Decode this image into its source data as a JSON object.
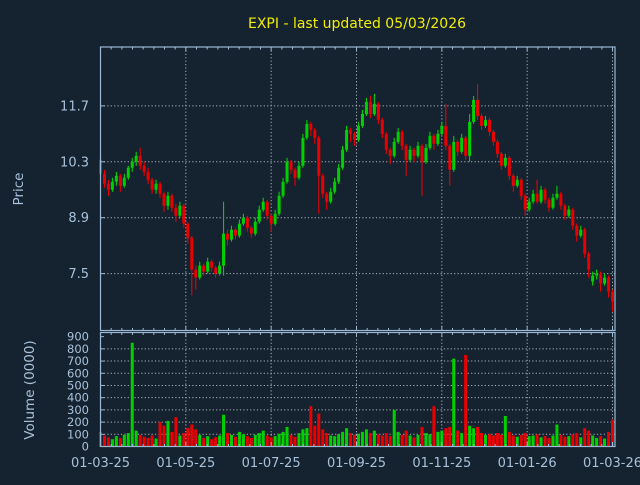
{
  "title": {
    "text": "EXPI - last updated 05/03/2026",
    "color": "#f0f000"
  },
  "colors": {
    "background": "#15222f",
    "spine": "#9cb8d3",
    "tick_label": "#a7c1da",
    "grid": "#c9ced6",
    "up": "#00d000",
    "down": "#ea0000"
  },
  "chart_data": {
    "type": "candlestick",
    "title": "EXPI - last updated 05/03/2026",
    "price": {
      "ylabel": "Price",
      "yticks": [
        11.7,
        10.3,
        8.9,
        7.5
      ],
      "ymin": 6.075,
      "ymax": 13.175,
      "grid": true
    },
    "volume": {
      "ylabel": "Volume (0000)",
      "yticks": [
        900,
        800,
        700,
        600,
        500,
        400,
        300,
        200,
        100,
        0
      ],
      "ymin": 0,
      "ymax": 934,
      "grid": true
    },
    "xticks": {
      "labels": [
        "01-03-25",
        "01-05-25",
        "01-07-25",
        "01-09-25",
        "01-11-25",
        "01-01-26",
        "01-03-26"
      ],
      "positions": [
        0,
        21.5,
        43,
        64.5,
        86,
        107.5,
        129
      ]
    },
    "ohlc": [
      [
        10.35,
        10.5,
        9.9,
        10.0
      ],
      [
        10.0,
        10.1,
        9.65,
        9.75
      ],
      [
        9.75,
        9.85,
        9.45,
        9.6
      ],
      [
        9.6,
        9.9,
        9.55,
        9.8
      ],
      [
        9.8,
        10.05,
        9.7,
        9.95
      ],
      [
        9.95,
        10.0,
        9.55,
        9.7
      ],
      [
        9.7,
        10.0,
        9.65,
        9.9
      ],
      [
        9.9,
        10.2,
        9.85,
        10.15
      ],
      [
        10.15,
        10.4,
        10.05,
        10.3
      ],
      [
        10.3,
        10.55,
        10.2,
        10.45
      ],
      [
        10.45,
        10.65,
        10.1,
        10.2
      ],
      [
        10.2,
        10.3,
        9.95,
        10.05
      ],
      [
        10.05,
        10.15,
        9.75,
        9.85
      ],
      [
        9.85,
        9.9,
        9.5,
        9.6
      ],
      [
        9.6,
        9.85,
        9.5,
        9.75
      ],
      [
        9.75,
        9.8,
        9.4,
        9.5
      ],
      [
        9.5,
        9.55,
        9.05,
        9.2
      ],
      [
        9.2,
        9.55,
        9.1,
        9.45
      ],
      [
        9.45,
        9.5,
        9.05,
        9.15
      ],
      [
        9.15,
        9.25,
        8.8,
        8.95
      ],
      [
        8.95,
        9.3,
        8.9,
        9.2
      ],
      [
        9.2,
        9.25,
        8.65,
        8.75
      ],
      [
        8.75,
        8.8,
        8.25,
        8.4
      ],
      [
        8.4,
        8.45,
        6.95,
        7.6
      ],
      [
        7.6,
        7.7,
        7.1,
        7.4
      ],
      [
        7.4,
        7.8,
        7.35,
        7.7
      ],
      [
        7.7,
        7.75,
        7.45,
        7.55
      ],
      [
        7.55,
        7.9,
        7.5,
        7.8
      ],
      [
        7.8,
        7.85,
        7.55,
        7.65
      ],
      [
        7.65,
        7.7,
        7.4,
        7.5
      ],
      [
        7.5,
        7.8,
        7.45,
        7.7
      ],
      [
        7.7,
        9.3,
        7.45,
        8.5
      ],
      [
        8.5,
        8.6,
        8.2,
        8.35
      ],
      [
        8.35,
        8.7,
        8.3,
        8.6
      ],
      [
        8.6,
        8.65,
        8.35,
        8.45
      ],
      [
        8.45,
        8.85,
        8.4,
        8.75
      ],
      [
        8.75,
        9.0,
        8.7,
        8.9
      ],
      [
        8.9,
        8.95,
        8.55,
        8.65
      ],
      [
        8.65,
        8.7,
        8.4,
        8.5
      ],
      [
        8.5,
        8.9,
        8.45,
        8.8
      ],
      [
        8.8,
        9.2,
        8.75,
        9.1
      ],
      [
        9.1,
        9.4,
        9.05,
        9.3
      ],
      [
        9.3,
        9.35,
        8.85,
        8.95
      ],
      [
        8.95,
        9.0,
        8.55,
        8.75
      ],
      [
        8.75,
        9.1,
        8.7,
        9.0
      ],
      [
        9.0,
        9.55,
        8.95,
        9.45
      ],
      [
        9.45,
        9.9,
        9.4,
        9.8
      ],
      [
        9.8,
        10.4,
        9.75,
        10.3
      ],
      [
        10.3,
        10.35,
        10.0,
        10.1
      ],
      [
        10.1,
        10.15,
        9.7,
        9.9
      ],
      [
        9.9,
        10.3,
        9.85,
        10.2
      ],
      [
        10.2,
        11.0,
        10.15,
        10.9
      ],
      [
        10.9,
        11.35,
        10.85,
        11.25
      ],
      [
        11.25,
        11.3,
        10.95,
        11.1
      ],
      [
        11.1,
        11.15,
        10.75,
        10.9
      ],
      [
        10.9,
        10.95,
        9.0,
        9.95
      ],
      [
        9.95,
        10.0,
        9.4,
        9.5
      ],
      [
        9.5,
        9.55,
        9.1,
        9.3
      ],
      [
        9.3,
        9.65,
        9.25,
        9.55
      ],
      [
        9.55,
        9.9,
        9.5,
        9.8
      ],
      [
        9.8,
        10.25,
        9.75,
        10.15
      ],
      [
        10.15,
        10.7,
        10.1,
        10.6
      ],
      [
        10.6,
        11.2,
        10.55,
        11.1
      ],
      [
        11.1,
        11.15,
        10.8,
        11.0
      ],
      [
        11.0,
        11.05,
        10.7,
        10.85
      ],
      [
        10.85,
        11.3,
        10.8,
        11.2
      ],
      [
        11.2,
        11.6,
        11.15,
        11.5
      ],
      [
        11.5,
        11.9,
        11.45,
        11.8
      ],
      [
        11.8,
        11.95,
        11.4,
        11.5
      ],
      [
        11.5,
        12.0,
        11.45,
        11.75
      ],
      [
        11.75,
        11.8,
        11.25,
        11.35
      ],
      [
        11.35,
        11.4,
        10.9,
        11.0
      ],
      [
        11.0,
        11.05,
        10.5,
        10.6
      ],
      [
        10.6,
        10.65,
        10.25,
        10.45
      ],
      [
        10.45,
        10.9,
        10.4,
        10.8
      ],
      [
        10.8,
        11.15,
        10.75,
        11.05
      ],
      [
        11.05,
        11.1,
        10.6,
        10.7
      ],
      [
        10.7,
        10.75,
        9.95,
        10.35
      ],
      [
        10.35,
        10.7,
        10.3,
        10.6
      ],
      [
        10.6,
        10.65,
        10.3,
        10.45
      ],
      [
        10.45,
        10.8,
        10.4,
        10.7
      ],
      [
        10.7,
        10.75,
        9.45,
        10.3
      ],
      [
        10.3,
        10.75,
        10.25,
        10.65
      ],
      [
        10.65,
        11.05,
        10.6,
        10.95
      ],
      [
        10.95,
        11.0,
        10.6,
        10.75
      ],
      [
        10.75,
        11.1,
        10.7,
        11.0
      ],
      [
        11.0,
        11.3,
        10.95,
        11.2
      ],
      [
        11.2,
        11.75,
        10.6,
        10.7
      ],
      [
        10.7,
        10.75,
        9.7,
        10.1
      ],
      [
        10.1,
        10.95,
        10.05,
        10.8
      ],
      [
        10.8,
        10.85,
        10.45,
        10.55
      ],
      [
        10.55,
        11.0,
        10.5,
        10.9
      ],
      [
        10.9,
        10.95,
        10.35,
        10.45
      ],
      [
        10.45,
        11.5,
        10.3,
        11.3
      ],
      [
        11.3,
        11.95,
        11.25,
        11.85
      ],
      [
        11.85,
        12.25,
        11.35,
        11.45
      ],
      [
        11.45,
        11.5,
        11.1,
        11.2
      ],
      [
        11.2,
        11.45,
        11.15,
        11.35
      ],
      [
        11.35,
        11.4,
        10.95,
        11.05
      ],
      [
        11.05,
        11.1,
        10.7,
        10.8
      ],
      [
        10.8,
        10.85,
        10.4,
        10.5
      ],
      [
        10.5,
        10.55,
        10.1,
        10.2
      ],
      [
        10.2,
        10.5,
        10.15,
        10.4
      ],
      [
        10.4,
        10.45,
        9.85,
        9.95
      ],
      [
        9.95,
        10.0,
        9.55,
        9.7
      ],
      [
        9.7,
        9.95,
        9.65,
        9.85
      ],
      [
        9.85,
        9.9,
        9.35,
        9.45
      ],
      [
        9.45,
        9.5,
        8.95,
        9.1
      ],
      [
        9.1,
        9.4,
        9.05,
        9.3
      ],
      [
        9.3,
        9.6,
        9.25,
        9.5
      ],
      [
        9.5,
        9.85,
        9.25,
        9.3
      ],
      [
        9.3,
        9.7,
        9.25,
        9.6
      ],
      [
        9.6,
        9.65,
        9.25,
        9.35
      ],
      [
        9.35,
        9.4,
        9.05,
        9.15
      ],
      [
        9.15,
        9.5,
        9.1,
        9.4
      ],
      [
        9.4,
        9.7,
        9.35,
        9.5
      ],
      [
        9.5,
        9.55,
        9.1,
        9.2
      ],
      [
        9.2,
        9.25,
        8.85,
        8.95
      ],
      [
        8.95,
        9.2,
        8.9,
        9.1
      ],
      [
        9.1,
        9.15,
        8.6,
        8.7
      ],
      [
        8.7,
        8.75,
        8.3,
        8.45
      ],
      [
        8.45,
        8.7,
        8.4,
        8.6
      ],
      [
        8.6,
        8.65,
        7.9,
        8.0
      ],
      [
        8.0,
        8.05,
        7.4,
        7.6
      ],
      [
        7.3,
        7.55,
        7.2,
        7.45
      ],
      [
        7.45,
        7.6,
        7.35,
        7.5
      ],
      [
        7.5,
        7.55,
        7.05,
        7.25
      ],
      [
        7.25,
        7.5,
        7.2,
        7.4
      ],
      [
        7.4,
        7.45,
        6.9,
        7.05
      ],
      [
        7.05,
        7.1,
        6.55,
        6.8
      ]
    ],
    "volumes": [
      120,
      90,
      75,
      60,
      85,
      70,
      95,
      110,
      850,
      130,
      95,
      80,
      70,
      90,
      65,
      200,
      170,
      210,
      120,
      240,
      90,
      110,
      150,
      180,
      140,
      95,
      70,
      85,
      60,
      75,
      90,
      260,
      110,
      95,
      80,
      120,
      100,
      85,
      70,
      95,
      110,
      130,
      90,
      75,
      85,
      105,
      120,
      160,
      95,
      80,
      110,
      140,
      150,
      330,
      170,
      270,
      140,
      110,
      90,
      85,
      100,
      120,
      150,
      110,
      95,
      105,
      120,
      140,
      110,
      130,
      100,
      90,
      110,
      85,
      300,
      120,
      95,
      130,
      90,
      75,
      95,
      160,
      110,
      100,
      330,
      120,
      130,
      150,
      160,
      720,
      130,
      110,
      750,
      170,
      150,
      160,
      110,
      95,
      100,
      90,
      110,
      95,
      250,
      120,
      90,
      80,
      95,
      110,
      85,
      90,
      100,
      75,
      85,
      70,
      90,
      180,
      95,
      80,
      85,
      100,
      110,
      75,
      150,
      130,
      90,
      70,
      85,
      65,
      120,
      220
    ]
  }
}
